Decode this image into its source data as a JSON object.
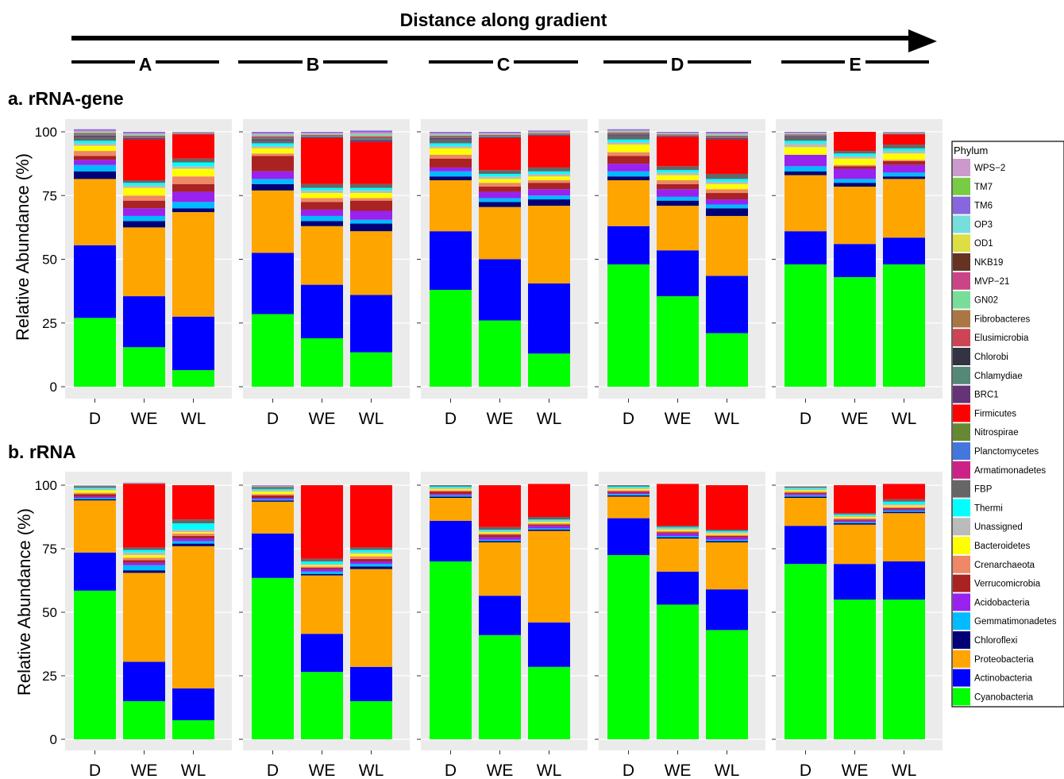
{
  "header": {
    "arrow_label": "Distance along gradient",
    "sites": [
      "A",
      "B",
      "C",
      "D",
      "E"
    ]
  },
  "legend": {
    "title": "Phylum",
    "placement": "right",
    "entries": [
      {
        "name": "WPS−2",
        "color": "#cc99cc"
      },
      {
        "name": "TM7",
        "color": "#77cc44"
      },
      {
        "name": "TM6",
        "color": "#8866dd"
      },
      {
        "name": "OP3",
        "color": "#77dddd"
      },
      {
        "name": "OD1",
        "color": "#dddd44"
      },
      {
        "name": "NKB19",
        "color": "#663322"
      },
      {
        "name": "MVP−21",
        "color": "#cc4488"
      },
      {
        "name": "GN02",
        "color": "#77dd99"
      },
      {
        "name": "Fibrobacteres",
        "color": "#aa7744"
      },
      {
        "name": "Elusimicrobia",
        "color": "#cc4455"
      },
      {
        "name": "Chlorobi",
        "color": "#333344"
      },
      {
        "name": "Chlamydiae",
        "color": "#558877"
      },
      {
        "name": "BRC1",
        "color": "#663377"
      },
      {
        "name": "Firmicutes",
        "color": "#ff0000"
      },
      {
        "name": "Nitrospirae",
        "color": "#668833"
      },
      {
        "name": "Planctomycetes",
        "color": "#4477dd"
      },
      {
        "name": "Armatimonadetes",
        "color": "#cc2288"
      },
      {
        "name": "FBP",
        "color": "#666666"
      },
      {
        "name": "Thermi",
        "color": "#00ffff"
      },
      {
        "name": "Unassigned",
        "color": "#bbbbbb"
      },
      {
        "name": "Bacteroidetes",
        "color": "#ffff00"
      },
      {
        "name": "Crenarchaeota",
        "color": "#ee8866"
      },
      {
        "name": "Verrucomicrobia",
        "color": "#aa2222"
      },
      {
        "name": "Acidobacteria",
        "color": "#9922ee"
      },
      {
        "name": "Gemmatimonadetes",
        "color": "#00bbff"
      },
      {
        "name": "Chloroflexi",
        "color": "#000077"
      },
      {
        "name": "Proteobacteria",
        "color": "#ffa500"
      },
      {
        "name": "Actinobacteria",
        "color": "#0000ff"
      },
      {
        "name": "Cyanobacteria",
        "color": "#00ff00"
      }
    ]
  },
  "chart_data": [
    {
      "type": "bar",
      "stacked": true,
      "title": "a. rRNA-gene",
      "ylabel": "Relative Abundance (%)",
      "xlabel": "",
      "ylim": [
        0,
        100
      ],
      "yticks": [
        0,
        25,
        50,
        75,
        100
      ],
      "grid": true,
      "facets": [
        {
          "site": "A",
          "categories": [
            "D",
            "WE",
            "WL"
          ],
          "bars": [
            {
              "Cyanobacteria": 27,
              "Actinobacteria": 28.5,
              "Proteobacteria": 26,
              "Chloroflexi": 3,
              "Gemmatimonadetes": 2.5,
              "Acidobacteria": 2,
              "Verrucomicrobia": 1.5,
              "Crenarchaeota": 2,
              "Bacteroidetes": 2,
              "Unassigned": 1,
              "Thermi": 1,
              "FBP": 1.5,
              "Firmicutes": 0,
              "Other": 3
            },
            {
              "Cyanobacteria": 15.5,
              "Actinobacteria": 20,
              "Proteobacteria": 27,
              "Chloroflexi": 2.5,
              "Gemmatimonadetes": 2,
              "Acidobacteria": 3,
              "Verrucomicrobia": 3,
              "Crenarchaeota": 2,
              "Bacteroidetes": 3,
              "Unassigned": 1,
              "Thermi": 1,
              "FBP": 1,
              "Firmicutes": 16,
              "Other": 3
            },
            {
              "Cyanobacteria": 6.5,
              "Actinobacteria": 21,
              "Proteobacteria": 41,
              "Chloroflexi": 1.5,
              "Gemmatimonadetes": 2.5,
              "Acidobacteria": 4,
              "Verrucomicrobia": 3,
              "Crenarchaeota": 3,
              "Bacteroidetes": 3,
              "Unassigned": 1,
              "Thermi": 1.5,
              "FBP": 1.5,
              "Firmicutes": 9.5,
              "Other": 1
            }
          ]
        },
        {
          "site": "B",
          "categories": [
            "D",
            "WE",
            "WL"
          ],
          "bars": [
            {
              "Cyanobacteria": 28.5,
              "Actinobacteria": 24,
              "Proteobacteria": 24.5,
              "Chloroflexi": 2.5,
              "Gemmatimonadetes": 2,
              "Acidobacteria": 3,
              "Verrucomicrobia": 6,
              "Crenarchaeota": 1,
              "Bacteroidetes": 2,
              "Unassigned": 1,
              "Thermi": 1,
              "FBP": 1,
              "Firmicutes": 0,
              "Other": 3.5
            },
            {
              "Cyanobacteria": 19,
              "Actinobacteria": 21,
              "Proteobacteria": 23,
              "Chloroflexi": 2,
              "Gemmatimonadetes": 2,
              "Acidobacteria": 2.5,
              "Verrucomicrobia": 3,
              "Crenarchaeota": 1.5,
              "Bacteroidetes": 2,
              "Unassigned": 1,
              "Thermi": 1,
              "FBP": 1.5,
              "Firmicutes": 18,
              "Other": 2.5
            },
            {
              "Cyanobacteria": 13.5,
              "Actinobacteria": 22.5,
              "Proteobacteria": 25,
              "Chloroflexi": 3,
              "Gemmatimonadetes": 1.5,
              "Acidobacteria": 3.5,
              "Verrucomicrobia": 4,
              "Crenarchaeota": 1,
              "Bacteroidetes": 2,
              "Unassigned": 1,
              "Thermi": 1,
              "FBP": 1.5,
              "Firmicutes": 16.5,
              "Other": 4.5
            }
          ]
        },
        {
          "site": "C",
          "categories": [
            "D",
            "WE",
            "WL"
          ],
          "bars": [
            {
              "Cyanobacteria": 38,
              "Actinobacteria": 23,
              "Proteobacteria": 20,
              "Chloroflexi": 1.5,
              "Gemmatimonadetes": 2,
              "Acidobacteria": 1.5,
              "Verrucomicrobia": 3.5,
              "Crenarchaeota": 1.5,
              "Bacteroidetes": 2.5,
              "Unassigned": 1,
              "Thermi": 1,
              "FBP": 1.5,
              "Firmicutes": 0,
              "Other": 3
            },
            {
              "Cyanobacteria": 26,
              "Actinobacteria": 24,
              "Proteobacteria": 20.5,
              "Chloroflexi": 2,
              "Gemmatimonadetes": 1.5,
              "Acidobacteria": 2.5,
              "Verrucomicrobia": 2,
              "Crenarchaeota": 1.5,
              "Bacteroidetes": 1.5,
              "Unassigned": 1,
              "Thermi": 1,
              "FBP": 1.5,
              "Firmicutes": 12.5,
              "Other": 2.5
            },
            {
              "Cyanobacteria": 13,
              "Actinobacteria": 27.5,
              "Proteobacteria": 30.5,
              "Chloroflexi": 2.5,
              "Gemmatimonadetes": 1.5,
              "Acidobacteria": 2.5,
              "Verrucomicrobia": 2.5,
              "Crenarchaeota": 1,
              "Bacteroidetes": 1.5,
              "Unassigned": 1,
              "Thermi": 1,
              "FBP": 1.5,
              "Firmicutes": 12.5,
              "Other": 2
            }
          ]
        },
        {
          "site": "D",
          "categories": [
            "D",
            "WE",
            "WL"
          ],
          "bars": [
            {
              "Cyanobacteria": 48,
              "Actinobacteria": 15,
              "Proteobacteria": 18,
              "Chloroflexi": 1.5,
              "Gemmatimonadetes": 2,
              "Acidobacteria": 3,
              "Verrucomicrobia": 3,
              "Crenarchaeota": 1.5,
              "Bacteroidetes": 3,
              "Unassigned": 1,
              "Thermi": 1,
              "FBP": 1.5,
              "Firmicutes": 0,
              "Other": 2.5
            },
            {
              "Cyanobacteria": 35.5,
              "Actinobacteria": 18,
              "Proteobacteria": 17.5,
              "Chloroflexi": 2,
              "Gemmatimonadetes": 1.5,
              "Acidobacteria": 3,
              "Verrucomicrobia": 2,
              "Crenarchaeota": 1.5,
              "Bacteroidetes": 2,
              "Unassigned": 1,
              "Thermi": 1,
              "FBP": 1.5,
              "Firmicutes": 11.5,
              "Other": 2
            },
            {
              "Cyanobacteria": 21,
              "Actinobacteria": 22.5,
              "Proteobacteria": 23.5,
              "Chloroflexi": 3,
              "Gemmatimonadetes": 1.5,
              "Acidobacteria": 2,
              "Verrucomicrobia": 2.5,
              "Crenarchaeota": 1.5,
              "Bacteroidetes": 2,
              "Unassigned": 1,
              "Thermi": 1,
              "FBP": 2,
              "Firmicutes": 13.5,
              "Other": 3
            }
          ]
        },
        {
          "site": "E",
          "categories": [
            "D",
            "WE",
            "WL"
          ],
          "bars": [
            {
              "Cyanobacteria": 48,
              "Actinobacteria": 13,
              "Proteobacteria": 22,
              "Chloroflexi": 1.5,
              "Gemmatimonadetes": 2,
              "Acidobacteria": 4.5,
              "Verrucomicrobia": 0,
              "Crenarchaeota": 0,
              "Bacteroidetes": 3,
              "Unassigned": 1.5,
              "Thermi": 1,
              "FBP": 1.5,
              "Firmicutes": 0,
              "Other": 2
            },
            {
              "Cyanobacteria": 43,
              "Actinobacteria": 13,
              "Proteobacteria": 22.5,
              "Chloroflexi": 1.5,
              "Gemmatimonadetes": 1.5,
              "Acidobacteria": 4,
              "Verrucomicrobia": 1,
              "Crenarchaeota": 0.5,
              "Bacteroidetes": 2.5,
              "Unassigned": 1,
              "Thermi": 1,
              "FBP": 1,
              "Firmicutes": 7.5,
              "Other": 0
            },
            {
              "Cyanobacteria": 48,
              "Actinobacteria": 10.5,
              "Proteobacteria": 23,
              "Chloroflexi": 1,
              "Gemmatimonadetes": 1.5,
              "Acidobacteria": 3,
              "Verrucomicrobia": 1.5,
              "Crenarchaeota": 0.5,
              "Bacteroidetes": 2.5,
              "Unassigned": 1,
              "Thermi": 1,
              "FBP": 1.5,
              "Firmicutes": 4,
              "Other": 1
            }
          ]
        }
      ]
    },
    {
      "type": "bar",
      "stacked": true,
      "title": "b. rRNA",
      "ylabel": "Relative Abundance (%)",
      "xlabel": "",
      "ylim": [
        0,
        100
      ],
      "yticks": [
        0,
        25,
        50,
        75,
        100
      ],
      "grid": true,
      "facets": [
        {
          "site": "A",
          "categories": [
            "D",
            "WE",
            "WL"
          ],
          "bars": [
            {
              "Cyanobacteria": 58.5,
              "Actinobacteria": 15,
              "Proteobacteria": 20.5,
              "Chloroflexi": 0.5,
              "Gemmatimonadetes": 0.5,
              "Acidobacteria": 0.5,
              "Verrucomicrobia": 1,
              "Crenarchaeota": 0.5,
              "Bacteroidetes": 1,
              "Unassigned": 0.5,
              "Thermi": 0.5,
              "FBP": 0.5,
              "Firmicutes": 0,
              "Other": 0.5
            },
            {
              "Cyanobacteria": 15,
              "Actinobacteria": 15.5,
              "Proteobacteria": 35,
              "Chloroflexi": 1,
              "Gemmatimonadetes": 2,
              "Acidobacteria": 1,
              "Verrucomicrobia": 1,
              "Crenarchaeota": 1,
              "Bacteroidetes": 1,
              "Unassigned": 1,
              "Thermi": 1,
              "FBP": 1,
              "Firmicutes": 25,
              "Other": 0.5
            },
            {
              "Cyanobacteria": 7.5,
              "Actinobacteria": 12.5,
              "Proteobacteria": 56,
              "Chloroflexi": 1,
              "Gemmatimonadetes": 1,
              "Acidobacteria": 1,
              "Verrucomicrobia": 1,
              "Crenarchaeota": 1,
              "Bacteroidetes": 0.5,
              "Unassigned": 1,
              "Thermi": 2.5,
              "FBP": 1.5,
              "Firmicutes": 13.5,
              "Other": 0
            }
          ]
        },
        {
          "site": "B",
          "categories": [
            "D",
            "WE",
            "WL"
          ],
          "bars": [
            {
              "Cyanobacteria": 63.5,
              "Actinobacteria": 17.5,
              "Proteobacteria": 12.5,
              "Chloroflexi": 0.5,
              "Gemmatimonadetes": 0.5,
              "Acidobacteria": 0.5,
              "Verrucomicrobia": 1,
              "Crenarchaeota": 0.5,
              "Bacteroidetes": 1,
              "Unassigned": 0.5,
              "Thermi": 0.5,
              "FBP": 0.5,
              "Firmicutes": 0,
              "Other": 1
            },
            {
              "Cyanobacteria": 26.5,
              "Actinobacteria": 15,
              "Proteobacteria": 23,
              "Chloroflexi": 0.5,
              "Gemmatimonadetes": 1,
              "Acidobacteria": 1,
              "Verrucomicrobia": 0.5,
              "Crenarchaeota": 0.5,
              "Bacteroidetes": 0.5,
              "Unassigned": 0.5,
              "Thermi": 1,
              "FBP": 1,
              "Firmicutes": 29,
              "Other": 0
            },
            {
              "Cyanobacteria": 15,
              "Actinobacteria": 13.5,
              "Proteobacteria": 38.5,
              "Chloroflexi": 1,
              "Gemmatimonadetes": 1,
              "Acidobacteria": 1,
              "Verrucomicrobia": 1,
              "Crenarchaeota": 1,
              "Bacteroidetes": 1,
              "Unassigned": 0.5,
              "Thermi": 1,
              "FBP": 1,
              "Firmicutes": 24.5,
              "Other": 0
            }
          ]
        },
        {
          "site": "C",
          "categories": [
            "D",
            "WE",
            "WL"
          ],
          "bars": [
            {
              "Cyanobacteria": 70,
              "Actinobacteria": 16,
              "Proteobacteria": 9,
              "Chloroflexi": 0.5,
              "Gemmatimonadetes": 0.5,
              "Acidobacteria": 0.5,
              "Verrucomicrobia": 1,
              "Crenarchaeota": 0.5,
              "Bacteroidetes": 0.5,
              "Unassigned": 0.5,
              "Thermi": 0.5,
              "FBP": 0.5,
              "Firmicutes": 0,
              "Other": 0
            },
            {
              "Cyanobacteria": 41,
              "Actinobacteria": 15.5,
              "Proteobacteria": 21,
              "Chloroflexi": 0.5,
              "Gemmatimonadetes": 0.5,
              "Acidobacteria": 1,
              "Verrucomicrobia": 1,
              "Crenarchaeota": 0.5,
              "Bacteroidetes": 0.5,
              "Unassigned": 0.5,
              "Thermi": 0.5,
              "FBP": 1,
              "Firmicutes": 16.5,
              "Other": 0
            },
            {
              "Cyanobacteria": 28.5,
              "Actinobacteria": 17.5,
              "Proteobacteria": 36,
              "Chloroflexi": 0.5,
              "Gemmatimonadetes": 0.5,
              "Acidobacteria": 1,
              "Verrucomicrobia": 0.5,
              "Crenarchaeota": 0.5,
              "Bacteroidetes": 0.5,
              "Unassigned": 0.5,
              "Thermi": 0.5,
              "FBP": 1,
              "Firmicutes": 13,
              "Other": 0
            }
          ]
        },
        {
          "site": "D",
          "categories": [
            "D",
            "WE",
            "WL"
          ],
          "bars": [
            {
              "Cyanobacteria": 72.5,
              "Actinobacteria": 14.5,
              "Proteobacteria": 8.5,
              "Chloroflexi": 0.5,
              "Gemmatimonadetes": 0.5,
              "Acidobacteria": 0.5,
              "Verrucomicrobia": 0.5,
              "Crenarchaeota": 0.5,
              "Bacteroidetes": 0.5,
              "Unassigned": 0.5,
              "Thermi": 0.5,
              "FBP": 0.5,
              "Firmicutes": 0,
              "Other": 0
            },
            {
              "Cyanobacteria": 53,
              "Actinobacteria": 13,
              "Proteobacteria": 13,
              "Chloroflexi": 0.5,
              "Gemmatimonadetes": 0.5,
              "Acidobacteria": 1,
              "Verrucomicrobia": 0.5,
              "Crenarchaeota": 0.5,
              "Bacteroidetes": 0.5,
              "Unassigned": 0.5,
              "Thermi": 0.5,
              "FBP": 0.5,
              "Firmicutes": 16.5,
              "Other": 0
            },
            {
              "Cyanobacteria": 43,
              "Actinobacteria": 16,
              "Proteobacteria": 18.5,
              "Chloroflexi": 0.5,
              "Gemmatimonadetes": 0.5,
              "Acidobacteria": 1,
              "Verrucomicrobia": 0.5,
              "Crenarchaeota": 0.5,
              "Bacteroidetes": 0.5,
              "Unassigned": 0.5,
              "Thermi": 0.5,
              "FBP": 0.5,
              "Firmicutes": 17.5,
              "Other": 0
            }
          ]
        },
        {
          "site": "E",
          "categories": [
            "D",
            "WE",
            "WL"
          ],
          "bars": [
            {
              "Cyanobacteria": 69,
              "Actinobacteria": 15,
              "Proteobacteria": 11,
              "Chloroflexi": 0.5,
              "Gemmatimonadetes": 0.5,
              "Acidobacteria": 0.5,
              "Verrucomicrobia": 0.5,
              "Crenarchaeota": 0.5,
              "Bacteroidetes": 0.5,
              "Unassigned": 0.5,
              "Thermi": 0.5,
              "FBP": 0.5,
              "Firmicutes": 0,
              "Other": 0
            },
            {
              "Cyanobacteria": 55,
              "Actinobacteria": 14,
              "Proteobacteria": 15.5,
              "Chloroflexi": 0.5,
              "Gemmatimonadetes": 0.5,
              "Acidobacteria": 0.5,
              "Verrucomicrobia": 0.5,
              "Crenarchaeota": 0.5,
              "Bacteroidetes": 0.5,
              "Unassigned": 0.5,
              "Thermi": 0.5,
              "FBP": 0.5,
              "Firmicutes": 11,
              "Other": 0
            },
            {
              "Cyanobacteria": 55,
              "Actinobacteria": 15,
              "Proteobacteria": 19,
              "Chloroflexi": 0.5,
              "Gemmatimonadetes": 0.5,
              "Acidobacteria": 0.5,
              "Verrucomicrobia": 0.5,
              "Crenarchaeota": 0.5,
              "Bacteroidetes": 0.5,
              "Unassigned": 0.5,
              "Thermi": 1,
              "FBP": 1,
              "Firmicutes": 6,
              "Other": 0
            }
          ]
        }
      ]
    }
  ]
}
